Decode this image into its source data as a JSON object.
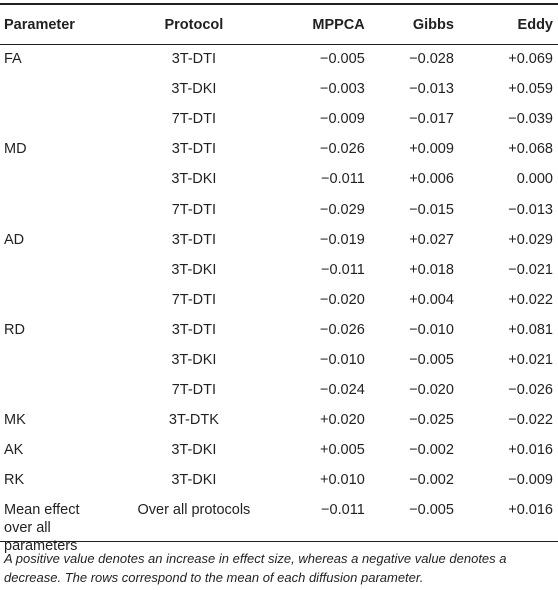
{
  "table": {
    "headers": {
      "parameter": "Parameter",
      "protocol": "Protocol",
      "mppca": "MPPCA",
      "gibbs": "Gibbs",
      "eddy": "Eddy"
    },
    "rows": [
      {
        "parameter": "FA",
        "protocol": "3T-DTI",
        "mppca": "−0.005",
        "gibbs": "−0.028",
        "eddy": "+0.069"
      },
      {
        "parameter": "",
        "protocol": "3T-DKI",
        "mppca": "−0.003",
        "gibbs": "−0.013",
        "eddy": "+0.059"
      },
      {
        "parameter": "",
        "protocol": "7T-DTI",
        "mppca": "−0.009",
        "gibbs": "−0.017",
        "eddy": "−0.039"
      },
      {
        "parameter": "MD",
        "protocol": "3T-DTI",
        "mppca": "−0.026",
        "gibbs": "+0.009",
        "eddy": "+0.068"
      },
      {
        "parameter": "",
        "protocol": "3T-DKI",
        "mppca": "−0.011",
        "gibbs": "+0.006",
        "eddy": "0.000"
      },
      {
        "parameter": "",
        "protocol": "7T-DTI",
        "mppca": "−0.029",
        "gibbs": "−0.015",
        "eddy": "−0.013"
      },
      {
        "parameter": "AD",
        "protocol": "3T-DTI",
        "mppca": "−0.019",
        "gibbs": "+0.027",
        "eddy": "+0.029"
      },
      {
        "parameter": "",
        "protocol": "3T-DKI",
        "mppca": "−0.011",
        "gibbs": "+0.018",
        "eddy": "−0.021"
      },
      {
        "parameter": "",
        "protocol": "7T-DTI",
        "mppca": "−0.020",
        "gibbs": "+0.004",
        "eddy": "+0.022"
      },
      {
        "parameter": "RD",
        "protocol": "3T-DTI",
        "mppca": "−0.026",
        "gibbs": "−0.010",
        "eddy": "+0.081"
      },
      {
        "parameter": "",
        "protocol": "3T-DKI",
        "mppca": "−0.010",
        "gibbs": "−0.005",
        "eddy": "+0.021"
      },
      {
        "parameter": "",
        "protocol": "7T-DTI",
        "mppca": "−0.024",
        "gibbs": "−0.020",
        "eddy": "−0.026"
      },
      {
        "parameter": "MK",
        "protocol": "3T-DTK",
        "mppca": "+0.020",
        "gibbs": "−0.025",
        "eddy": "−0.022"
      },
      {
        "parameter": "AK",
        "protocol": "3T-DKI",
        "mppca": "+0.005",
        "gibbs": "−0.002",
        "eddy": "+0.016"
      },
      {
        "parameter": "RK",
        "protocol": "3T-DKI",
        "mppca": "+0.010",
        "gibbs": "−0.002",
        "eddy": "−0.009"
      }
    ],
    "summary_row": {
      "parameter": "Mean effect over all parameters",
      "protocol": "Over all protocols",
      "mppca": "−0.011",
      "gibbs": "−0.005",
      "eddy": "+0.016"
    }
  },
  "footnote": "A positive value denotes an increase in effect size, whereas a negative value denotes a decrease. The rows correspond to the mean of each diffusion parameter."
}
